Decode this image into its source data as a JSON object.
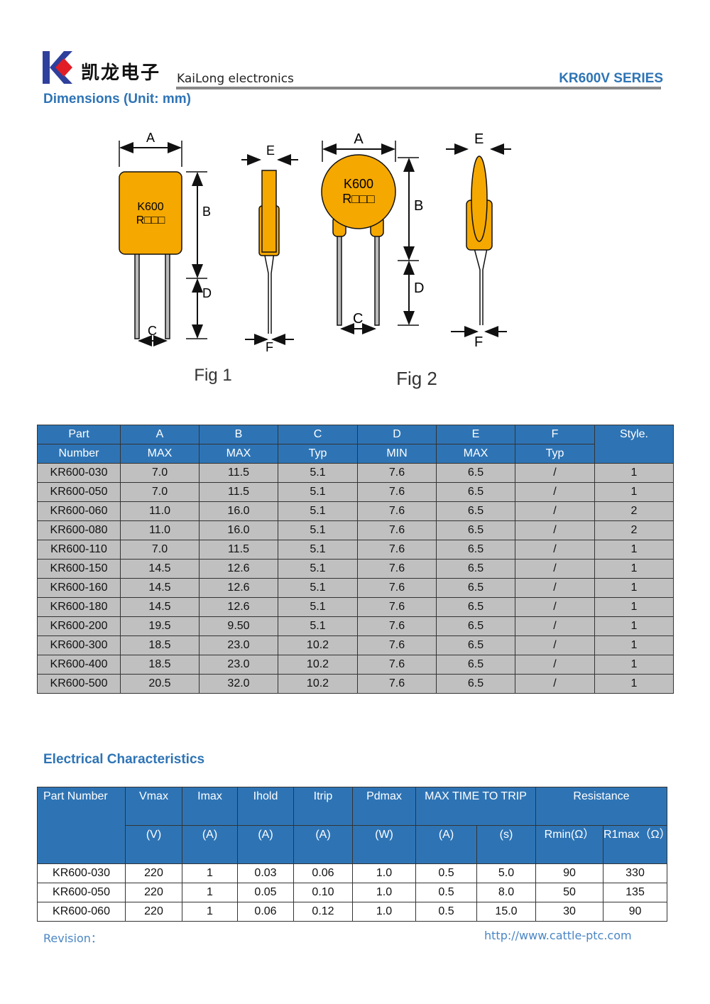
{
  "header": {
    "logo_cn": "凯龙电子",
    "logo_en": "KaiLong electronics",
    "series": "KR600V SERIES"
  },
  "dimensions": {
    "title": "Dimensions (Unit: mm)",
    "figures": {
      "fig1_caption": "Fig 1",
      "fig2_caption": "Fig 2",
      "marking_line1": "K600",
      "marking_line2": "R□□□",
      "labels": {
        "A": "A",
        "B": "B",
        "C": "C",
        "D": "D",
        "E": "E",
        "F": "F"
      }
    },
    "table": {
      "header_top": [
        "Part",
        "A",
        "B",
        "C",
        "D",
        "E",
        "F",
        "Style."
      ],
      "header_bottom": [
        "Number",
        "MAX",
        "MAX",
        "Typ",
        "MIN",
        "MAX",
        "Typ"
      ],
      "rows": [
        [
          "KR600-030",
          "7.0",
          "11.5",
          "5.1",
          "7.6",
          "6.5",
          "/",
          "1"
        ],
        [
          "KR600-050",
          "7.0",
          "11.5",
          "5.1",
          "7.6",
          "6.5",
          "/",
          "1"
        ],
        [
          "KR600-060",
          "11.0",
          "16.0",
          "5.1",
          "7.6",
          "6.5",
          "/",
          "2"
        ],
        [
          "KR600-080",
          "11.0",
          "16.0",
          "5.1",
          "7.6",
          "6.5",
          "/",
          "2"
        ],
        [
          "KR600-110",
          "7.0",
          "11.5",
          "5.1",
          "7.6",
          "6.5",
          "/",
          "1"
        ],
        [
          "KR600-150",
          "14.5",
          "12.6",
          "5.1",
          "7.6",
          "6.5",
          "/",
          "1"
        ],
        [
          "KR600-160",
          "14.5",
          "12.6",
          "5.1",
          "7.6",
          "6.5",
          "/",
          "1"
        ],
        [
          "KR600-180",
          "14.5",
          "12.6",
          "5.1",
          "7.6",
          "6.5",
          "/",
          "1"
        ],
        [
          "KR600-200",
          "19.5",
          "9.50",
          "5.1",
          "7.6",
          "6.5",
          "/",
          "1"
        ],
        [
          "KR600-300",
          "18.5",
          "23.0",
          "10.2",
          "7.6",
          "6.5",
          "/",
          "1"
        ],
        [
          "KR600-400",
          "18.5",
          "23.0",
          "10.2",
          "7.6",
          "6.5",
          "/",
          "1"
        ],
        [
          "KR600-500",
          "20.5",
          "32.0",
          "10.2",
          "7.6",
          "6.5",
          "/",
          "1"
        ]
      ]
    }
  },
  "electrical": {
    "title": "Electrical Characteristics",
    "table": {
      "header_top": [
        "Part Number",
        "Vmax",
        "Imax",
        "Ihold",
        "Itrip",
        "Pdmax",
        "MAX TIME TO TRIP",
        "Resistance"
      ],
      "header_bottom": [
        "(V)",
        "(A)",
        "(A)",
        "(A)",
        "(W)",
        "(A)",
        "(s)",
        "Rmin(Ω）",
        "R1max（Ω）"
      ],
      "rows": [
        [
          "KR600-030",
          "220",
          "1",
          "0.03",
          "0.06",
          "1.0",
          "0.5",
          "5.0",
          "90",
          "330"
        ],
        [
          "KR600-050",
          "220",
          "1",
          "0.05",
          "0.10",
          "1.0",
          "0.5",
          "8.0",
          "50",
          "135"
        ],
        [
          "KR600-060",
          "220",
          "1",
          "0.06",
          "0.12",
          "1.0",
          "0.5",
          "15.0",
          "30",
          "90"
        ]
      ]
    }
  },
  "footer": {
    "revision": "Revision：",
    "url": "http://www.cattle-ptc.com"
  },
  "colors": {
    "accent": "#2e74b5",
    "row_gray": "#c0c0c0",
    "component": "#f5a800"
  }
}
